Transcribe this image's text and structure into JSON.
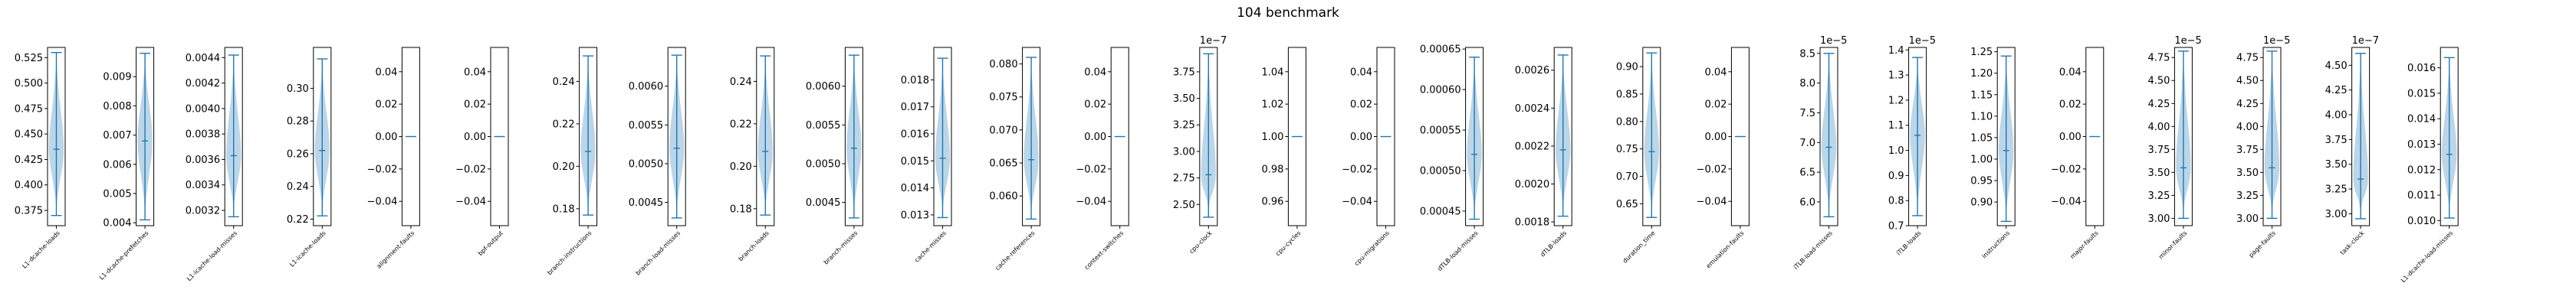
{
  "title": "104 benchmark",
  "colors": {
    "violin_fill": "#1f77b4",
    "violin_line": "#1f77b4",
    "axis": "#000000"
  },
  "chart_data": {
    "type": "violin",
    "title": "104 benchmark",
    "subplots": [
      {
        "category": "L1-dcache-loads",
        "ticks": [
          "0.375",
          "0.400",
          "0.425",
          "0.450",
          "0.475",
          "0.500",
          "0.525"
        ],
        "tick_values": [
          0.375,
          0.4,
          0.425,
          0.45,
          0.475,
          0.5,
          0.525
        ],
        "ylim": [
          0.36,
          0.535
        ],
        "min": 0.37,
        "max": 0.53,
        "median": 0.435,
        "offset": ""
      },
      {
        "category": "L1-dcache-prefetches",
        "ticks": [
          "0.004",
          "0.005",
          "0.006",
          "0.007",
          "0.008",
          "0.009"
        ],
        "tick_values": [
          0.004,
          0.005,
          0.006,
          0.007,
          0.008,
          0.009
        ],
        "ylim": [
          0.0039,
          0.01
        ],
        "min": 0.0041,
        "max": 0.0098,
        "median": 0.0068,
        "offset": ""
      },
      {
        "category": "L1-icache-load-misses",
        "ticks": [
          "0.0032",
          "0.0034",
          "0.0036",
          "0.0038",
          "0.0040",
          "0.0042",
          "0.0044"
        ],
        "tick_values": [
          0.0032,
          0.0034,
          0.0036,
          0.0038,
          0.004,
          0.0042,
          0.0044
        ],
        "ylim": [
          0.00308,
          0.00448
        ],
        "min": 0.00315,
        "max": 0.00442,
        "median": 0.00363,
        "offset": ""
      },
      {
        "category": "L1-icache-loads",
        "ticks": [
          "0.22",
          "0.24",
          "0.26",
          "0.28",
          "0.30"
        ],
        "tick_values": [
          0.22,
          0.24,
          0.26,
          0.28,
          0.3
        ],
        "ylim": [
          0.216,
          0.325
        ],
        "min": 0.222,
        "max": 0.318,
        "median": 0.262,
        "offset": ""
      },
      {
        "category": "alignment-faults",
        "ticks": [
          "−0.04",
          "−0.02",
          "0.00",
          "0.02",
          "0.04"
        ],
        "tick_values": [
          -0.04,
          -0.02,
          0,
          0.02,
          0.04
        ],
        "ylim": [
          -0.055,
          0.055
        ],
        "min": 0,
        "max": 0,
        "median": 0,
        "offset": ""
      },
      {
        "category": "bpf-output",
        "ticks": [
          "−0.04",
          "−0.02",
          "0.00",
          "0.02",
          "0.04"
        ],
        "tick_values": [
          -0.04,
          -0.02,
          0,
          0.02,
          0.04
        ],
        "ylim": [
          -0.055,
          0.055
        ],
        "min": 0,
        "max": 0,
        "median": 0,
        "offset": ""
      },
      {
        "category": "branch-instructions",
        "ticks": [
          "0.18",
          "0.20",
          "0.22",
          "0.24"
        ],
        "tick_values": [
          0.18,
          0.2,
          0.22,
          0.24
        ],
        "ylim": [
          0.172,
          0.256
        ],
        "min": 0.177,
        "max": 0.252,
        "median": 0.207,
        "offset": ""
      },
      {
        "category": "branch-load-misses",
        "ticks": [
          "0.0045",
          "0.0050",
          "0.0055",
          "0.0060"
        ],
        "tick_values": [
          0.0045,
          0.005,
          0.0055,
          0.006
        ],
        "ylim": [
          0.0042,
          0.0065
        ],
        "min": 0.0043,
        "max": 0.0064,
        "median": 0.0052,
        "offset": ""
      },
      {
        "category": "branch-loads",
        "ticks": [
          "0.18",
          "0.20",
          "0.22",
          "0.24"
        ],
        "tick_values": [
          0.18,
          0.2,
          0.22,
          0.24
        ],
        "ylim": [
          0.172,
          0.256
        ],
        "min": 0.177,
        "max": 0.252,
        "median": 0.207,
        "offset": ""
      },
      {
        "category": "branch-misses",
        "ticks": [
          "0.0045",
          "0.0050",
          "0.0055",
          "0.0060"
        ],
        "tick_values": [
          0.0045,
          0.005,
          0.0055,
          0.006
        ],
        "ylim": [
          0.0042,
          0.0065
        ],
        "min": 0.0043,
        "max": 0.0064,
        "median": 0.0052,
        "offset": ""
      },
      {
        "category": "cache-misses",
        "ticks": [
          "0.013",
          "0.014",
          "0.015",
          "0.016",
          "0.017",
          "0.018"
        ],
        "tick_values": [
          0.013,
          0.014,
          0.015,
          0.016,
          0.017,
          0.018
        ],
        "ylim": [
          0.0126,
          0.0192
        ],
        "min": 0.0129,
        "max": 0.0188,
        "median": 0.0151,
        "offset": ""
      },
      {
        "category": "cache-references",
        "ticks": [
          "0.060",
          "0.065",
          "0.070",
          "0.075",
          "0.080"
        ],
        "tick_values": [
          0.06,
          0.065,
          0.07,
          0.075,
          0.08
        ],
        "ylim": [
          0.0555,
          0.0825
        ],
        "min": 0.0565,
        "max": 0.081,
        "median": 0.0655,
        "offset": ""
      },
      {
        "category": "context-switches",
        "ticks": [
          "−0.04",
          "−0.02",
          "0.00",
          "0.02",
          "0.04"
        ],
        "tick_values": [
          -0.04,
          -0.02,
          0,
          0.02,
          0.04
        ],
        "ylim": [
          -0.055,
          0.055
        ],
        "min": 0,
        "max": 0,
        "median": 0,
        "offset": ""
      },
      {
        "category": "cpu-clock",
        "ticks": [
          "2.50",
          "2.75",
          "3.00",
          "3.25",
          "3.50",
          "3.75"
        ],
        "tick_values": [
          2.5,
          2.75,
          3.0,
          3.25,
          3.5,
          3.75
        ],
        "ylim": [
          2.3,
          3.98
        ],
        "min": 2.38,
        "max": 3.92,
        "median": 2.78,
        "offset": "1e−7"
      },
      {
        "category": "cpu-cycles",
        "ticks": [
          "0.96",
          "0.98",
          "1.00",
          "1.02",
          "1.04"
        ],
        "tick_values": [
          0.96,
          0.98,
          1.0,
          1.02,
          1.04
        ],
        "ylim": [
          0.945,
          1.055
        ],
        "min": 1,
        "max": 1,
        "median": 1,
        "offset": ""
      },
      {
        "category": "cpu-migrations",
        "ticks": [
          "−0.04",
          "−0.02",
          "0.00",
          "0.02",
          "0.04"
        ],
        "tick_values": [
          -0.04,
          -0.02,
          0,
          0.02,
          0.04
        ],
        "ylim": [
          -0.055,
          0.055
        ],
        "min": 0,
        "max": 0,
        "median": 0,
        "offset": ""
      },
      {
        "category": "dTLB-load-misses",
        "ticks": [
          "0.00045",
          "0.00050",
          "0.00055",
          "0.00060",
          "0.00065"
        ],
        "tick_values": [
          0.00045,
          0.0005,
          0.00055,
          0.0006,
          0.00065
        ],
        "ylim": [
          0.000432,
          0.000652
        ],
        "min": 0.00044,
        "max": 0.00064,
        "median": 0.00052,
        "offset": ""
      },
      {
        "category": "dTLB-loads",
        "ticks": [
          "0.0018",
          "0.0020",
          "0.0022",
          "0.0024",
          "0.0026"
        ],
        "tick_values": [
          0.0018,
          0.002,
          0.0022,
          0.0024,
          0.0026
        ],
        "ylim": [
          0.00178,
          0.00272
        ],
        "min": 0.00183,
        "max": 0.00268,
        "median": 0.00218,
        "offset": ""
      },
      {
        "category": "duration_time",
        "ticks": [
          "0.65",
          "0.70",
          "0.75",
          "0.80",
          "0.85",
          "0.90"
        ],
        "tick_values": [
          0.65,
          0.7,
          0.75,
          0.8,
          0.85,
          0.9
        ],
        "ylim": [
          0.61,
          0.935
        ],
        "min": 0.625,
        "max": 0.925,
        "median": 0.745,
        "offset": ""
      },
      {
        "category": "emulation-faults",
        "ticks": [
          "−0.04",
          "−0.02",
          "0.00",
          "0.02",
          "0.04"
        ],
        "tick_values": [
          -0.04,
          -0.02,
          0,
          0.02,
          0.04
        ],
        "ylim": [
          -0.055,
          0.055
        ],
        "min": 0,
        "max": 0,
        "median": 0,
        "offset": ""
      },
      {
        "category": "iTLB-load-misses",
        "ticks": [
          "6.0",
          "6.5",
          "7.0",
          "7.5",
          "8.0",
          "8.5"
        ],
        "tick_values": [
          6.0,
          6.5,
          7.0,
          7.5,
          8.0,
          8.5
        ],
        "ylim": [
          5.6,
          8.6
        ],
        "min": 5.75,
        "max": 8.5,
        "median": 6.92,
        "offset": "1e−5"
      },
      {
        "category": "iTLB-loads",
        "ticks": [
          "0.7",
          "0.8",
          "0.9",
          "1.0",
          "1.1",
          "1.2",
          "1.3",
          "1.4"
        ],
        "tick_values": [
          0.7,
          0.8,
          0.9,
          1.0,
          1.1,
          1.2,
          1.3,
          1.4
        ],
        "ylim": [
          0.7,
          1.41
        ],
        "min": 0.74,
        "max": 1.37,
        "median": 1.06,
        "offset": "1e−5"
      },
      {
        "category": "instructions",
        "ticks": [
          "0.90",
          "0.95",
          "1.00",
          "1.05",
          "1.10",
          "1.15",
          "1.20",
          "1.25"
        ],
        "tick_values": [
          0.9,
          0.95,
          1.0,
          1.05,
          1.1,
          1.15,
          1.2,
          1.25
        ],
        "ylim": [
          0.845,
          1.26
        ],
        "min": 0.855,
        "max": 1.24,
        "median": 1.02,
        "offset": ""
      },
      {
        "category": "major-faults",
        "ticks": [
          "−0.04",
          "−0.02",
          "0.00",
          "0.02",
          "0.04"
        ],
        "tick_values": [
          -0.04,
          -0.02,
          0,
          0.02,
          0.04
        ],
        "ylim": [
          -0.055,
          0.055
        ],
        "min": 0,
        "max": 0,
        "median": 0,
        "offset": ""
      },
      {
        "category": "minor-faults",
        "ticks": [
          "3.00",
          "3.25",
          "3.50",
          "3.75",
          "4.00",
          "4.25",
          "4.50",
          "4.75"
        ],
        "tick_values": [
          3.0,
          3.25,
          3.5,
          3.75,
          4.0,
          4.25,
          4.5,
          4.75
        ],
        "ylim": [
          2.92,
          4.86
        ],
        "min": 3.0,
        "max": 4.82,
        "median": 3.55,
        "offset": "1e−5"
      },
      {
        "category": "page-faults",
        "ticks": [
          "3.00",
          "3.25",
          "3.50",
          "3.75",
          "4.00",
          "4.25",
          "4.50",
          "4.75"
        ],
        "tick_values": [
          3.0,
          3.25,
          3.5,
          3.75,
          4.0,
          4.25,
          4.5,
          4.75
        ],
        "ylim": [
          2.92,
          4.86
        ],
        "min": 3.0,
        "max": 4.82,
        "median": 3.55,
        "offset": "1e−5"
      },
      {
        "category": "task-clock",
        "ticks": [
          "3.00",
          "3.25",
          "3.50",
          "3.75",
          "4.00",
          "4.25",
          "4.50"
        ],
        "tick_values": [
          3.0,
          3.25,
          3.5,
          3.75,
          4.0,
          4.25,
          4.5
        ],
        "ylim": [
          2.88,
          4.68
        ],
        "min": 2.95,
        "max": 4.62,
        "median": 3.35,
        "offset": "1e−7"
      },
      {
        "category": "L1-dcache-load-misses",
        "ticks": [
          "0.010",
          "0.011",
          "0.012",
          "0.013",
          "0.014",
          "0.015",
          "0.016"
        ],
        "tick_values": [
          0.01,
          0.011,
          0.012,
          0.013,
          0.014,
          0.015,
          0.016
        ],
        "ylim": [
          0.0098,
          0.0168
        ],
        "min": 0.0101,
        "max": 0.0164,
        "median": 0.0126,
        "offset": ""
      }
    ]
  }
}
